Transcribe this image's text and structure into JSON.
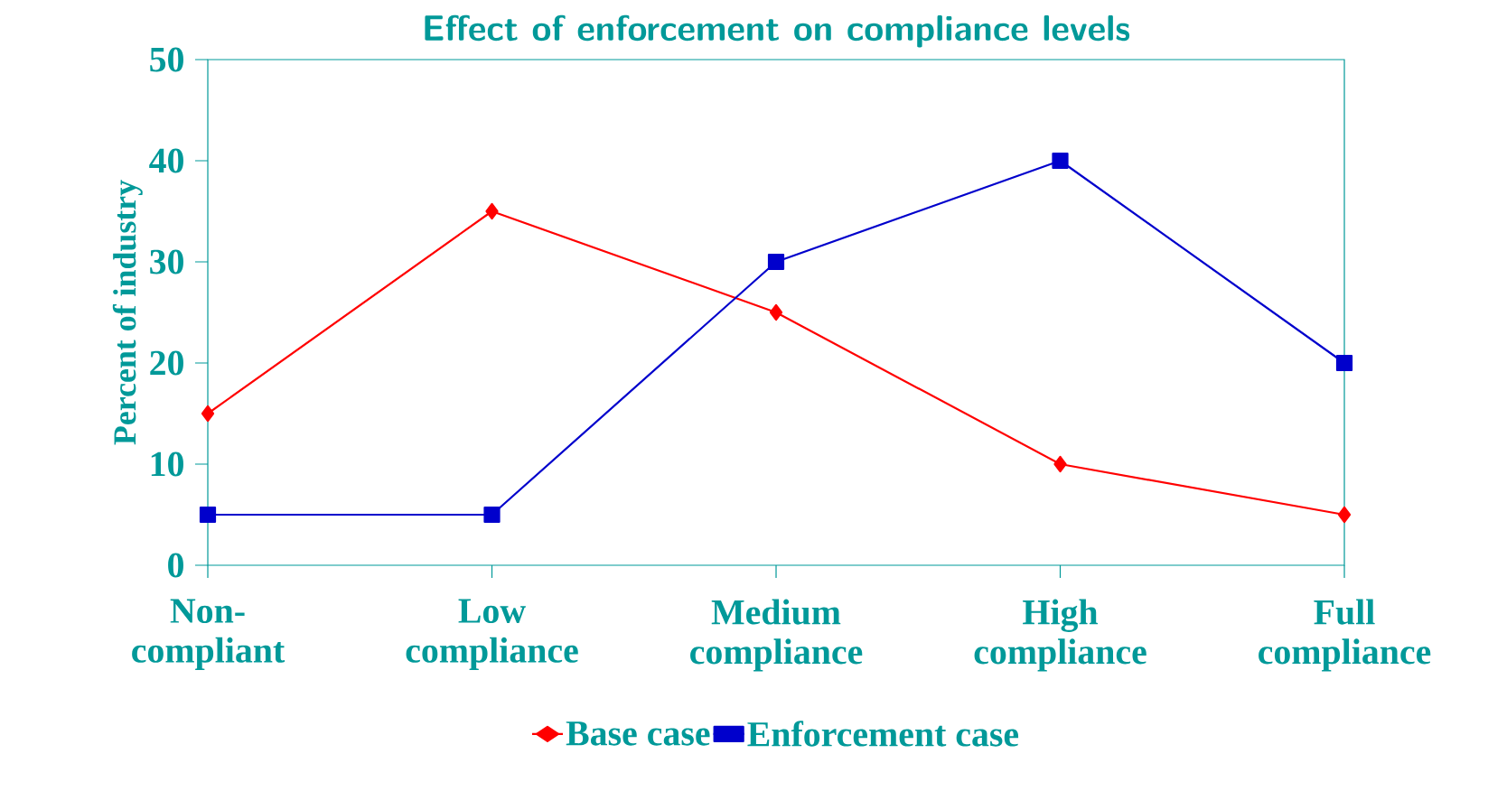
{
  "chart_data": {
    "type": "line",
    "title": "Effect of enforcement on compliance levels",
    "ylabel": "Percent of industry",
    "categories": [
      "Non-compliant",
      "Low compliance",
      "Medium compliance",
      "High compliance",
      "Full compliance"
    ],
    "series": [
      {
        "name": "Base case",
        "color": "#ff0000",
        "marker": "diamond",
        "values": [
          15,
          35,
          25,
          10,
          5
        ]
      },
      {
        "name": "Enforcement case",
        "color": "#0000cc",
        "marker": "square",
        "values": [
          5,
          5,
          30,
          40,
          20
        ]
      }
    ],
    "ylim": [
      0,
      50
    ],
    "yticks": [
      0,
      10,
      20,
      30,
      40,
      50
    ],
    "grid": false,
    "legend": "bottom"
  }
}
